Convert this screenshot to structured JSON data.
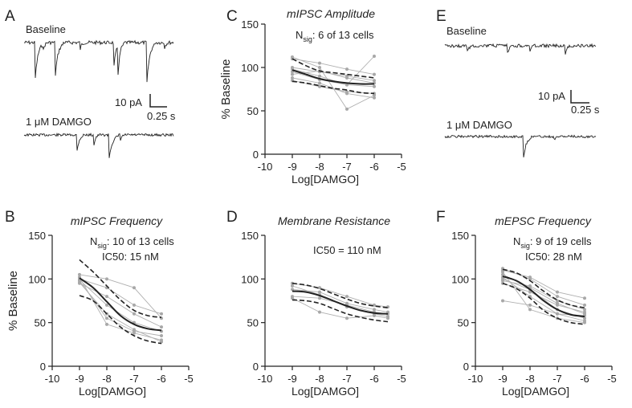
{
  "panels": [
    {
      "id": "A",
      "type": "traces",
      "condition_top": "Baseline",
      "condition_bottom": "1 μM DAMGO",
      "scale_y": "10 pA",
      "scale_x": "0.25 s"
    },
    {
      "id": "E",
      "type": "traces",
      "condition_top": "Baseline",
      "condition_bottom": "1 μM DAMGO",
      "scale_y": "10 pA",
      "scale_x": "0.25 s"
    }
  ],
  "chart_data": [
    {
      "id": "C",
      "type": "line",
      "title": "mIPSC Amplitude",
      "ylabel": "% Baseline",
      "xlabel": "Log[DAMGO]",
      "xlim": [
        -10,
        -5
      ],
      "ylim": [
        0,
        150
      ],
      "xticks": [
        "-10",
        "-9",
        "-8",
        "-7",
        "-6",
        "-5"
      ],
      "yticks": [
        "0",
        "50",
        "100",
        "150"
      ],
      "annotation": {
        "n_prefix": "N",
        "n_sub": "sig",
        "n_text": ": 6 of 13 cells",
        "ic50": ""
      },
      "fit": {
        "x": [
          -9,
          -8.5,
          -8,
          -7.5,
          -7,
          -6.5,
          -6
        ],
        "y": [
          97,
          92,
          87,
          84,
          82,
          81,
          81
        ],
        "upper": [
          110,
          102,
          96,
          94,
          92,
          90,
          88
        ],
        "lower": [
          84,
          82,
          79,
          76,
          74,
          71,
          70
        ]
      },
      "individual": [
        {
          "x": [
            -9,
            -8,
            -7,
            -6
          ],
          "y": [
            95,
            86,
            80,
            78
          ]
        },
        {
          "x": [
            -9,
            -8,
            -7,
            -6
          ],
          "y": [
            100,
            95,
            90,
            85
          ]
        },
        {
          "x": [
            -9,
            -8,
            -7,
            -6
          ],
          "y": [
            110,
            105,
            98,
            92
          ]
        },
        {
          "x": [
            -9,
            -8,
            -7,
            -6
          ],
          "y": [
            88,
            82,
            70,
            65
          ]
        },
        {
          "x": [
            -9,
            -8,
            -7,
            -6
          ],
          "y": [
            112,
            100,
            52,
            68
          ]
        },
        {
          "x": [
            -9,
            -8,
            -7,
            -6
          ],
          "y": [
            98,
            90,
            80,
            113
          ]
        },
        {
          "x": [
            -9,
            -8,
            -7,
            -6
          ],
          "y": [
            85,
            78,
            72,
            70
          ]
        },
        {
          "x": [
            -9,
            -8,
            -7,
            -6
          ],
          "y": [
            92,
            96,
            88,
            82
          ]
        }
      ]
    },
    {
      "id": "B",
      "type": "line",
      "title": "mIPSC Frequency",
      "ylabel": "% Baseline",
      "xlabel": "Log[DAMGO]",
      "xlim": [
        -10,
        -5
      ],
      "ylim": [
        0,
        150
      ],
      "xticks": [
        "-10",
        "-9",
        "-8",
        "-7",
        "-6",
        "-5"
      ],
      "yticks": [
        "0",
        "50",
        "100",
        "150"
      ],
      "annotation": {
        "n_prefix": "N",
        "n_sub": "sig",
        "n_text": ": 10 of 13 cells",
        "ic50": "IC50: 15 nM"
      },
      "fit": {
        "x": [
          -9,
          -8.5,
          -8,
          -7.5,
          -7,
          -6.5,
          -6
        ],
        "y": [
          101,
          90,
          74,
          58,
          48,
          43,
          41
        ],
        "upper": [
          122,
          108,
          92,
          76,
          64,
          58,
          56
        ],
        "lower": [
          81,
          75,
          60,
          45,
          35,
          29,
          26
        ]
      },
      "individual": [
        {
          "x": [
            -9,
            -8,
            -7,
            -6
          ],
          "y": [
            100,
            90,
            70,
            60
          ]
        },
        {
          "x": [
            -9,
            -8,
            -7,
            -6
          ],
          "y": [
            95,
            80,
            60,
            45
          ]
        },
        {
          "x": [
            -9,
            -8,
            -7,
            -6
          ],
          "y": [
            98,
            55,
            40,
            35
          ]
        },
        {
          "x": [
            -9,
            -8,
            -7,
            -6
          ],
          "y": [
            105,
            100,
            90,
            55
          ]
        },
        {
          "x": [
            -9,
            -8,
            -7,
            -6
          ],
          "y": [
            102,
            48,
            38,
            30
          ]
        },
        {
          "x": [
            -9,
            -8,
            -7,
            -6
          ],
          "y": [
            96,
            60,
            42,
            28
          ]
        },
        {
          "x": [
            -9,
            -8,
            -7,
            -6
          ],
          "y": [
            99,
            70,
            50,
            40
          ]
        }
      ]
    },
    {
      "id": "D",
      "type": "line",
      "title": "Membrane Resistance",
      "ylabel": "",
      "xlabel": "Log[DAMGO]",
      "xlim": [
        -10,
        -5
      ],
      "ylim": [
        0,
        150
      ],
      "xticks": [
        "-10",
        "-9",
        "-8",
        "-7",
        "-6",
        "-5"
      ],
      "yticks": [
        "0",
        "50",
        "100",
        "150"
      ],
      "annotation": {
        "n_prefix": "",
        "n_sub": "",
        "n_text": "",
        "ic50": "IC50 = 110 nM"
      },
      "fit": {
        "x": [
          -9,
          -8.5,
          -8,
          -7.5,
          -7,
          -6.5,
          -6,
          -5.5
        ],
        "y": [
          86,
          85,
          81,
          75,
          69,
          64,
          61,
          60
        ],
        "upper": [
          95,
          93,
          89,
          83,
          77,
          72,
          69,
          67
        ],
        "lower": [
          76,
          75,
          72,
          66,
          60,
          56,
          53,
          51
        ]
      },
      "individual": [
        {
          "x": [
            -9,
            -8,
            -7,
            -6,
            -5.5
          ],
          "y": [
            95,
            90,
            80,
            70,
            68
          ]
        },
        {
          "x": [
            -9,
            -8,
            -7,
            -6,
            -5.5
          ],
          "y": [
            80,
            78,
            70,
            62,
            60
          ]
        },
        {
          "x": [
            -9,
            -8,
            -7,
            -6,
            -5.5
          ],
          "y": [
            88,
            85,
            72,
            65,
            62
          ]
        },
        {
          "x": [
            -9,
            -8,
            -7,
            -6,
            -5.5
          ],
          "y": [
            92,
            82,
            68,
            60,
            57
          ]
        },
        {
          "x": [
            -9,
            -8,
            -7,
            -6,
            -5.5
          ],
          "y": [
            78,
            62,
            55,
            58,
            55
          ]
        }
      ]
    },
    {
      "id": "F",
      "type": "line",
      "title": "mEPSC Frequency",
      "ylabel": "",
      "xlabel": "Log[DAMGO]",
      "xlim": [
        -10,
        -5
      ],
      "ylim": [
        0,
        150
      ],
      "xticks": [
        "-10",
        "-9",
        "-8",
        "-7",
        "-6",
        "-5"
      ],
      "yticks": [
        "0",
        "50",
        "100",
        "150"
      ],
      "annotation": {
        "n_prefix": "N",
        "n_sub": "sig",
        "n_text": ": 9 of 19 cells",
        "ic50": "IC50: 28 nM"
      },
      "fit": {
        "x": [
          -9,
          -8.5,
          -8,
          -7.5,
          -7,
          -6.5,
          -6
        ],
        "y": [
          103,
          98,
          88,
          75,
          65,
          59,
          57
        ],
        "upper": [
          111,
          107,
          98,
          86,
          76,
          70,
          67
        ],
        "lower": [
          95,
          89,
          78,
          64,
          55,
          50,
          48
        ]
      },
      "individual": [
        {
          "x": [
            -9,
            -8,
            -7,
            -6
          ],
          "y": [
            112,
            100,
            80,
            70
          ]
        },
        {
          "x": [
            -9,
            -8,
            -7,
            -6
          ],
          "y": [
            105,
            90,
            72,
            60
          ]
        },
        {
          "x": [
            -9,
            -8,
            -7,
            -6
          ],
          "y": [
            100,
            88,
            65,
            55
          ]
        },
        {
          "x": [
            -9,
            -8,
            -7,
            -6
          ],
          "y": [
            75,
            70,
            60,
            58
          ]
        },
        {
          "x": [
            -9,
            -8,
            -7,
            -6
          ],
          "y": [
            108,
            65,
            55,
            50
          ]
        },
        {
          "x": [
            -9,
            -8,
            -7,
            -6
          ],
          "y": [
            95,
            85,
            70,
            62
          ]
        },
        {
          "x": [
            -9,
            -8,
            -7,
            -6
          ],
          "y": [
            110,
            102,
            85,
            78
          ]
        },
        {
          "x": [
            -9,
            -8,
            -7,
            -6
          ],
          "y": [
            102,
            80,
            60,
            52
          ]
        },
        {
          "x": [
            -9,
            -8,
            -7,
            -6
          ],
          "y": [
            98,
            92,
            75,
            65
          ]
        }
      ]
    }
  ]
}
